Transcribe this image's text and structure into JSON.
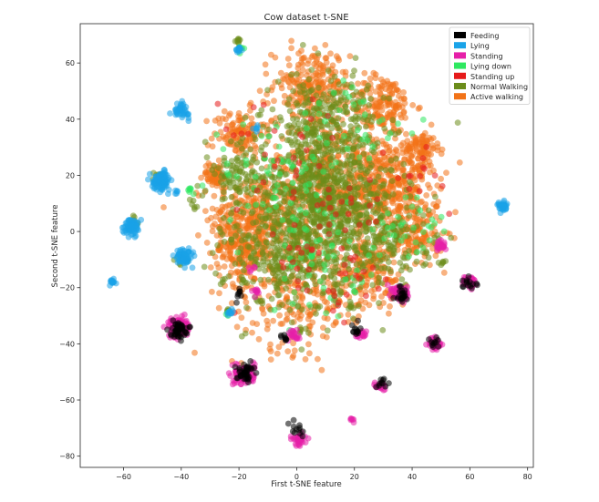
{
  "chart_data": {
    "type": "scatter",
    "title": "Cow dataset t-SNE",
    "xlabel": "First t-SNE feature",
    "ylabel": "Second t-SNE feature",
    "xlim": [
      -75,
      82
    ],
    "ylim": [
      -84,
      74
    ],
    "xticks": [
      -60,
      -40,
      -20,
      0,
      20,
      40,
      60,
      80
    ],
    "yticks": [
      -80,
      -60,
      -40,
      -20,
      0,
      20,
      40,
      60
    ],
    "grid": false,
    "legend_position": "top-right",
    "series": [
      {
        "name": "Feeding",
        "color": "#000000",
        "clusters": [
          [
            -41,
            -35,
            2.5,
            50
          ],
          [
            -18,
            -50,
            3,
            40
          ],
          [
            0,
            -70,
            2.5,
            12
          ],
          [
            36,
            -22,
            2.5,
            20
          ],
          [
            60,
            -18,
            2.5,
            14
          ],
          [
            21,
            -35,
            2,
            12
          ],
          [
            29,
            -54,
            2,
            10
          ],
          [
            48,
            -40,
            2,
            10
          ],
          [
            -4,
            -38,
            2,
            8
          ],
          [
            -20,
            -22,
            2,
            8
          ]
        ]
      },
      {
        "name": "Lying",
        "color": "#1aa3e8",
        "clusters": [
          [
            -47,
            18,
            2.8,
            100
          ],
          [
            -57,
            2,
            2.6,
            70
          ],
          [
            -40,
            43,
            2.4,
            45
          ],
          [
            -39,
            -9,
            2.6,
            60
          ],
          [
            71,
            9,
            1.6,
            35
          ],
          [
            -64,
            -18,
            1.2,
            14
          ],
          [
            -20,
            65,
            1,
            12
          ],
          [
            -23,
            -29,
            1.2,
            10
          ],
          [
            -14,
            36,
            1,
            6
          ],
          [
            -42,
            14,
            1,
            5
          ]
        ]
      },
      {
        "name": "Standing",
        "color": "#e61fa8",
        "clusters": [
          [
            -41,
            -34,
            2.9,
            140
          ],
          [
            -18,
            -51,
            3.1,
            120
          ],
          [
            36,
            -22,
            2.5,
            80
          ],
          [
            60,
            -18,
            2,
            45
          ],
          [
            48,
            -40,
            2,
            45
          ],
          [
            50,
            -5,
            1.6,
            28
          ],
          [
            1,
            -74,
            2.2,
            35
          ],
          [
            29,
            -55,
            1.6,
            22
          ],
          [
            22,
            -37,
            1.4,
            18
          ],
          [
            -1,
            -37,
            2,
            20
          ],
          [
            19,
            -67,
            1,
            6
          ],
          [
            -14,
            -21,
            1.2,
            10
          ],
          [
            -16,
            -13,
            1,
            5
          ]
        ]
      },
      {
        "name": "Lying down",
        "color": "#2ee860",
        "clusters": [
          [
            -20,
            65,
            1,
            10
          ],
          [
            -37,
            15,
            1,
            6
          ],
          [
            10,
            -10,
            18,
            60
          ],
          [
            -10,
            20,
            18,
            50
          ],
          [
            20,
            35,
            18,
            40
          ],
          [
            40,
            0,
            12,
            30
          ],
          [
            -24,
            -29,
            1,
            4
          ]
        ]
      },
      {
        "name": "Standing up",
        "color": "#e61a1a",
        "clusters": [
          [
            10,
            -5,
            22,
            45
          ],
          [
            -5,
            30,
            20,
            30
          ],
          [
            40,
            20,
            10,
            15
          ],
          [
            20,
            -15,
            15,
            15
          ]
        ]
      },
      {
        "name": "Normal Walking",
        "color": "#6b8c1a",
        "clusters": [
          [
            8,
            10,
            24,
            900
          ],
          [
            10,
            40,
            16,
            220
          ],
          [
            -5,
            -10,
            18,
            220
          ],
          [
            30,
            -5,
            14,
            150
          ],
          [
            -20,
            20,
            8,
            80
          ],
          [
            -40,
            -10,
            2,
            12
          ],
          [
            -57,
            3,
            2,
            10
          ],
          [
            -48,
            20,
            2,
            8
          ],
          [
            -20,
            68,
            1,
            8
          ],
          [
            -36,
            10,
            1.5,
            6
          ],
          [
            19,
            -27,
            1.5,
            8
          ],
          [
            2,
            -35,
            1.5,
            6
          ],
          [
            -13,
            -25,
            1.5,
            6
          ],
          [
            50,
            -12,
            1.5,
            6
          ],
          [
            48,
            -3,
            1.5,
            4
          ],
          [
            -24,
            -28,
            1,
            4
          ]
        ]
      },
      {
        "name": "Active walking",
        "color": "#f27318",
        "clusters": [
          [
            -15,
            5,
            14,
            280
          ],
          [
            35,
            15,
            13,
            280
          ],
          [
            5,
            52,
            12,
            220
          ],
          [
            -20,
            35,
            8,
            120
          ],
          [
            30,
            45,
            10,
            160
          ],
          [
            0,
            -20,
            20,
            260
          ],
          [
            -20,
            -7,
            9,
            140
          ],
          [
            42,
            -2,
            8,
            110
          ],
          [
            15,
            20,
            20,
            420
          ],
          [
            25,
            -15,
            12,
            170
          ],
          [
            -28,
            20,
            4,
            60
          ],
          [
            43,
            30,
            5,
            80
          ]
        ]
      }
    ]
  }
}
